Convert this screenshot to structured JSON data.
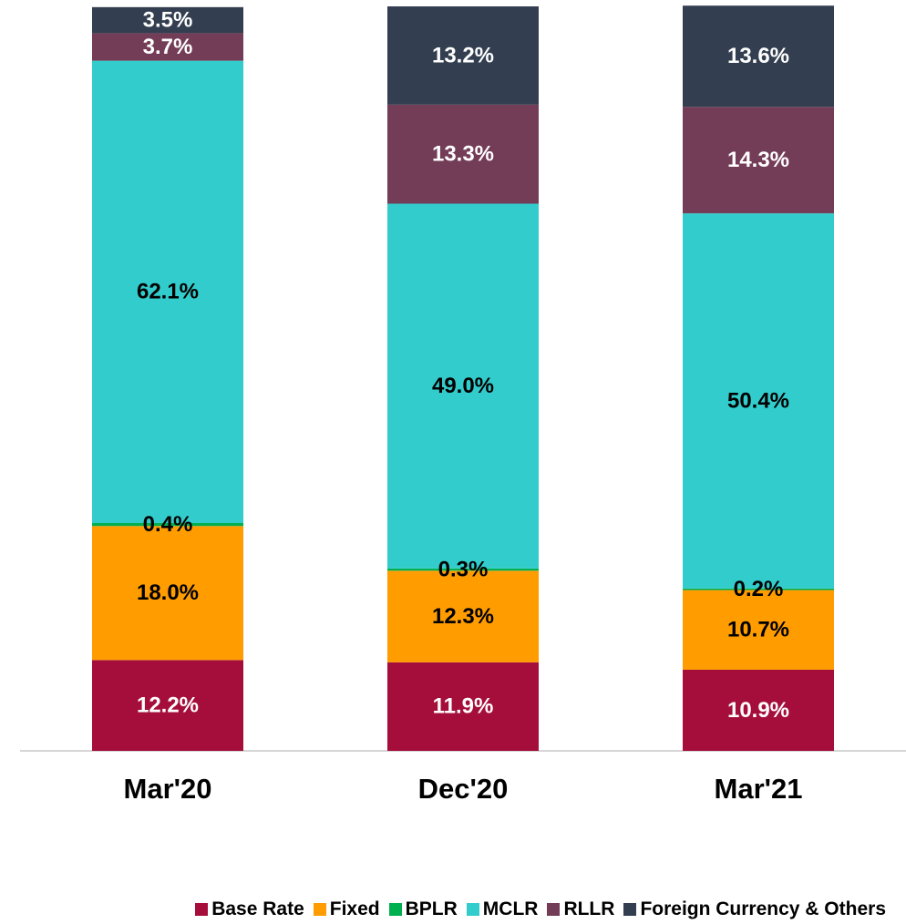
{
  "chart_data": {
    "type": "stacked_bar",
    "categories": [
      "Mar'20",
      "Dec'20",
      "Mar'21"
    ],
    "ylim": [
      0,
      100
    ],
    "legend": "bottom",
    "series": [
      {
        "name": "Base Rate",
        "color": "#a50e3b",
        "values": [
          12.2,
          11.9,
          10.9
        ],
        "value_labels": [
          "12.2%",
          "11.9%",
          "10.9%"
        ]
      },
      {
        "name": "Fixed",
        "color": "#ff9c00",
        "values": [
          18.0,
          12.3,
          10.7
        ],
        "value_labels": [
          "18.0%",
          "12.3%",
          "10.7%"
        ]
      },
      {
        "name": "BPLR",
        "color": "#00b050",
        "values": [
          0.4,
          0.3,
          0.2
        ],
        "value_labels": [
          "0.4%",
          "0.3%",
          "0.2%"
        ]
      },
      {
        "name": "MCLR",
        "color": "#33cccc",
        "values": [
          62.1,
          49.0,
          50.4
        ],
        "value_labels": [
          "62.1%",
          "49.0%",
          "50.4%"
        ]
      },
      {
        "name": "RLLR",
        "color": "#733c57",
        "values": [
          3.7,
          13.3,
          14.3
        ],
        "value_labels": [
          "3.7%",
          "13.3%",
          "14.3%"
        ]
      },
      {
        "name": "Foreign Currency & Others",
        "color": "#333f50",
        "values": [
          3.5,
          13.2,
          13.6
        ],
        "value_labels": [
          "3.5%",
          "13.2%",
          "13.6%"
        ]
      }
    ]
  }
}
